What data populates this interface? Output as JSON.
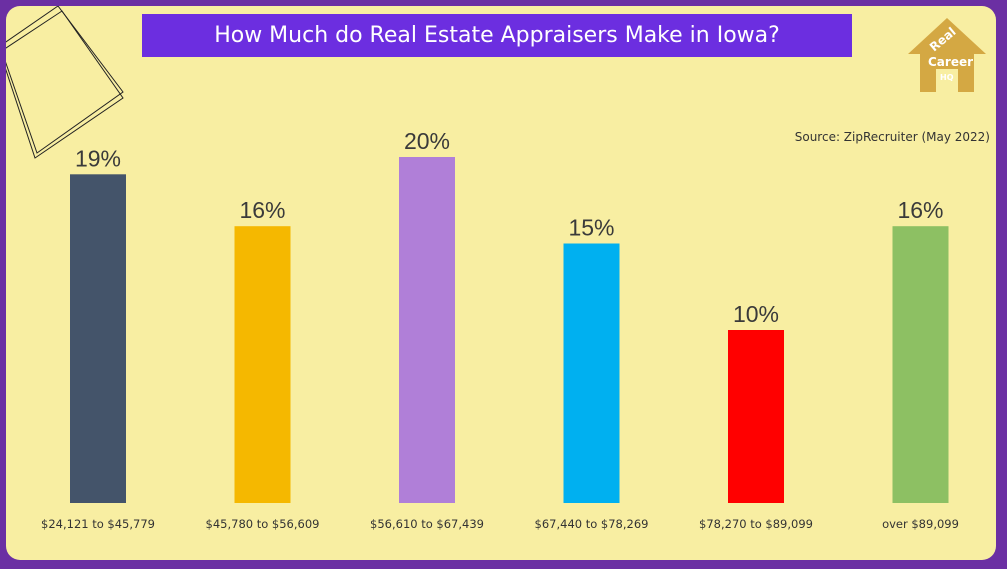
{
  "chart_data": {
    "type": "bar",
    "title": "How Much do Real Estate Appraisers Make in Iowa?",
    "source": "Source: ZipRecruiter (May 2022)",
    "categories": [
      "$24,121 to $45,779",
      "$45,780 to $56,609",
      "$56,610 to $67,439",
      "$67,440 to $78,269",
      "$78,270 to $89,099",
      "over $89,099"
    ],
    "values": [
      19,
      16,
      20,
      15,
      10,
      16
    ],
    "data_labels": [
      "19%",
      "16%",
      "20%",
      "15%",
      "10%",
      "16%"
    ],
    "colors": [
      "#44546a",
      "#f5b800",
      "#b07fd8",
      "#00b0f0",
      "#ff0000",
      "#8dc063"
    ],
    "ylim": [
      0,
      20
    ],
    "grid": false,
    "xlabel": "",
    "ylabel": ""
  },
  "logo": {
    "text": "Real Estate Career HQ",
    "color": "#d4a843"
  }
}
